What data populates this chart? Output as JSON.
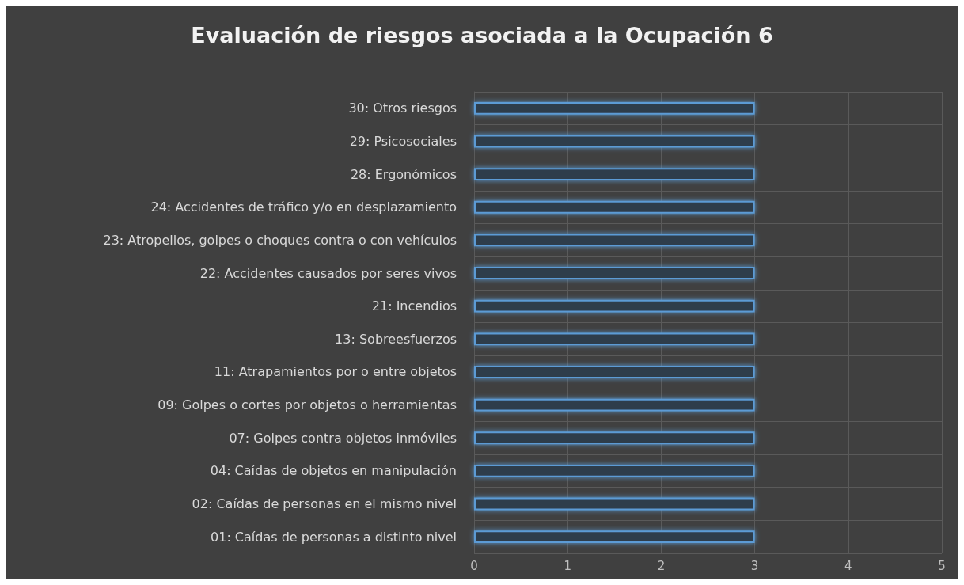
{
  "chart_data": {
    "type": "bar",
    "orientation": "horizontal",
    "title": "Evaluación de riesgos asociada a la Ocupación 6",
    "categories": [
      "30: Otros riesgos",
      "29: Psicosociales",
      "28: Ergonómicos",
      "24: Accidentes de tráfico y/o en desplazamiento",
      "23: Atropellos, golpes o choques contra o con vehículos",
      "22: Accidentes causados por seres vivos",
      "21: Incendios",
      "13: Sobreesfuerzos",
      "11: Atrapamientos por o entre objetos",
      "09: Golpes o cortes por objetos o herramientas",
      "07: Golpes contra objetos inmóviles",
      "04: Caídas de objetos en manipulación",
      "02: Caídas de personas en el mismo nivel",
      "01: Caídas de personas a distinto nivel"
    ],
    "values": [
      3,
      3,
      3,
      3,
      3,
      3,
      3,
      3,
      3,
      3,
      3,
      3,
      3,
      3
    ],
    "color": "#5b9bd5",
    "xlim": [
      0,
      5
    ],
    "xticks": [
      0,
      1,
      2,
      3,
      4,
      5
    ],
    "grid": true
  }
}
